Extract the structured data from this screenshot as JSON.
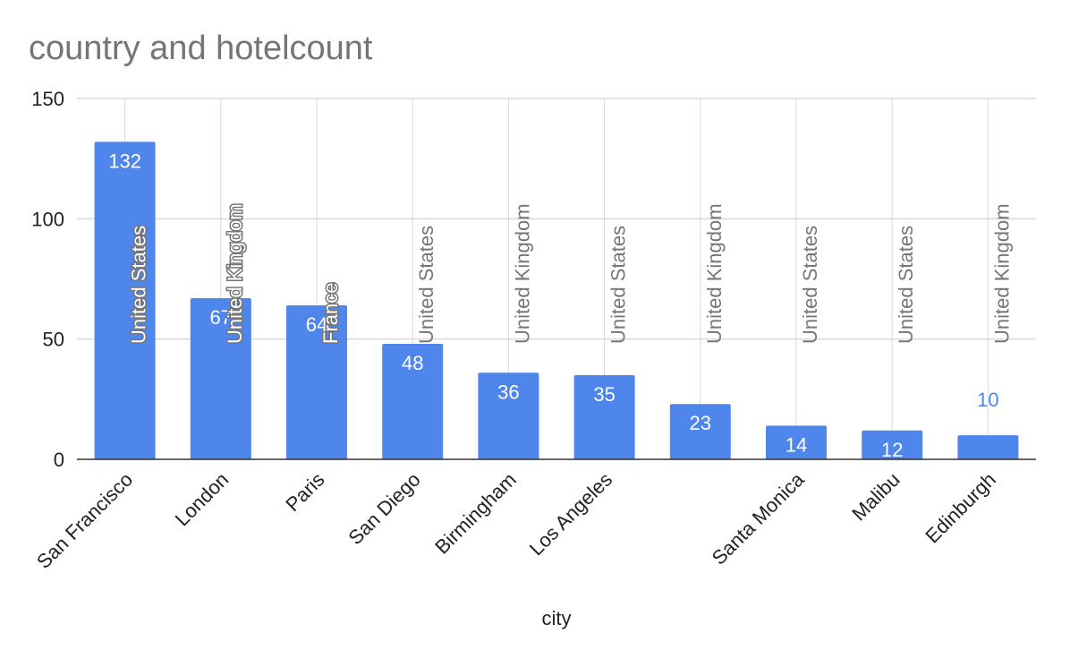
{
  "chart_data": {
    "type": "bar",
    "title": "country and hotelcount",
    "xlabel": "city",
    "ylabel": "",
    "ylim": [
      0,
      150
    ],
    "yticks": [
      0,
      50,
      100,
      150
    ],
    "grid": true,
    "categories": [
      "San Francisco",
      "London",
      "Paris",
      "San Diego",
      "Birmingham",
      "Los Angeles",
      "",
      "Santa Monica",
      "Malibu",
      "Edinburgh"
    ],
    "series": [
      {
        "values": [
          132,
          67,
          64,
          48,
          36,
          35,
          23,
          14,
          12,
          10
        ],
        "color": "#4f86ec"
      }
    ],
    "annotations": [
      "United States",
      "United Kingdom",
      "France",
      "United States",
      "United Kingdom",
      "United States",
      "United Kingdom",
      "United States",
      "United States",
      "United Kingdom"
    ]
  },
  "colors": {
    "bar": "#4f86ec",
    "grid": "#d9d9d9",
    "axis": "#333333",
    "title": "#757575",
    "country": "#757575"
  }
}
